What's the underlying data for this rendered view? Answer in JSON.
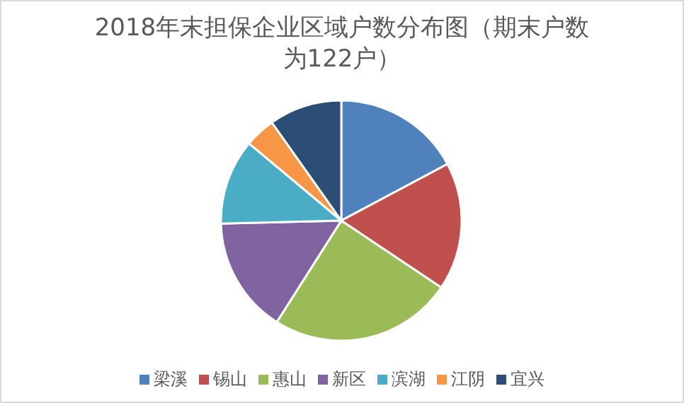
{
  "chart_data": {
    "type": "pie",
    "title": "2018年末担保企业区域户数分布图（期末户数为122户）",
    "categories": [
      "梁溪",
      "锡山",
      "惠山",
      "新区",
      "滨湖",
      "江阴",
      "宜兴"
    ],
    "values": [
      17.2,
      17.2,
      24.6,
      15.6,
      11.5,
      4.1,
      9.8
    ],
    "colors": [
      "#4f81bd",
      "#c0504d",
      "#9bbb59",
      "#8064a2",
      "#4bacc6",
      "#f79646",
      "#2c4d75"
    ],
    "legend": "bottom"
  }
}
